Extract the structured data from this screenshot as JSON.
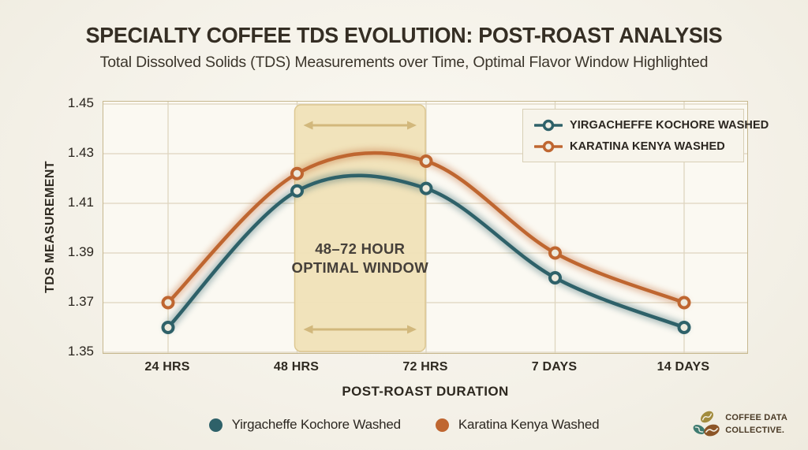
{
  "header": {
    "title": "SPECIALTY COFFEE TDS EVOLUTION: POST-ROAST ANALYSIS",
    "subtitle": "Total Dissolved Solids (TDS) Measurements over Time, Optimal Flavor Window Highlighted"
  },
  "chart_data": {
    "type": "line",
    "title": "Specialty Coffee TDS Evolution: Post-Roast Analysis",
    "curve": "smooth-spline",
    "categories": [
      "24 HRS",
      "48 HRS",
      "72 HRS",
      "7 DAYS",
      "14 DAYS"
    ],
    "series": [
      {
        "name": "Yirgacheffe Kochore Washed",
        "legend_label": "YIRGACHEFFE KOCHORE WASHED",
        "color": "#2e6169",
        "values": [
          1.36,
          1.415,
          1.416,
          1.38,
          1.36
        ]
      },
      {
        "name": "Karatina Kenya Washed",
        "legend_label": "KARATINA KENYA WASHED",
        "color": "#bf6630",
        "values": [
          1.37,
          1.422,
          1.427,
          1.39,
          1.37
        ]
      }
    ],
    "xlabel": "POST-ROAST DURATION",
    "ylabel": "TDS MEASUREMENT",
    "ylim": [
      1.35,
      1.45
    ],
    "yticks": [
      1.35,
      1.37,
      1.39,
      1.41,
      1.43,
      1.45
    ],
    "ytick_labels": [
      "1.35",
      "1.37",
      "1.39",
      "1.41",
      "1.43",
      "1.45"
    ],
    "grid": true,
    "legend_position": "top-right",
    "highlight_band": {
      "from_category": "48 HRS",
      "to_category": "72 HRS",
      "label_lines": [
        "48–72 HOUR",
        "OPTIMAL WINDOW"
      ],
      "fill": "#f0e2b8",
      "border": "#ddc892",
      "arrow_color": "#d2b87c",
      "label_color": "#46403a"
    }
  },
  "footer_legend": {
    "items": [
      {
        "label": "Yirgacheffe Kochore Washed",
        "color": "#2e6169"
      },
      {
        "label": "Karatina Kenya Washed",
        "color": "#bf6630"
      }
    ]
  },
  "logo": {
    "line1": "COFFEE DATA",
    "line2": "COLLECTIVE.",
    "bean_colors": [
      "#a28c3e",
      "#3e7b70",
      "#8c5527"
    ]
  },
  "style_colors": {
    "plot_background": "#fbf9f2",
    "gridline": "#ded5bf",
    "plot_border": "#c7b88f",
    "marker_fill": "#edeadd"
  }
}
